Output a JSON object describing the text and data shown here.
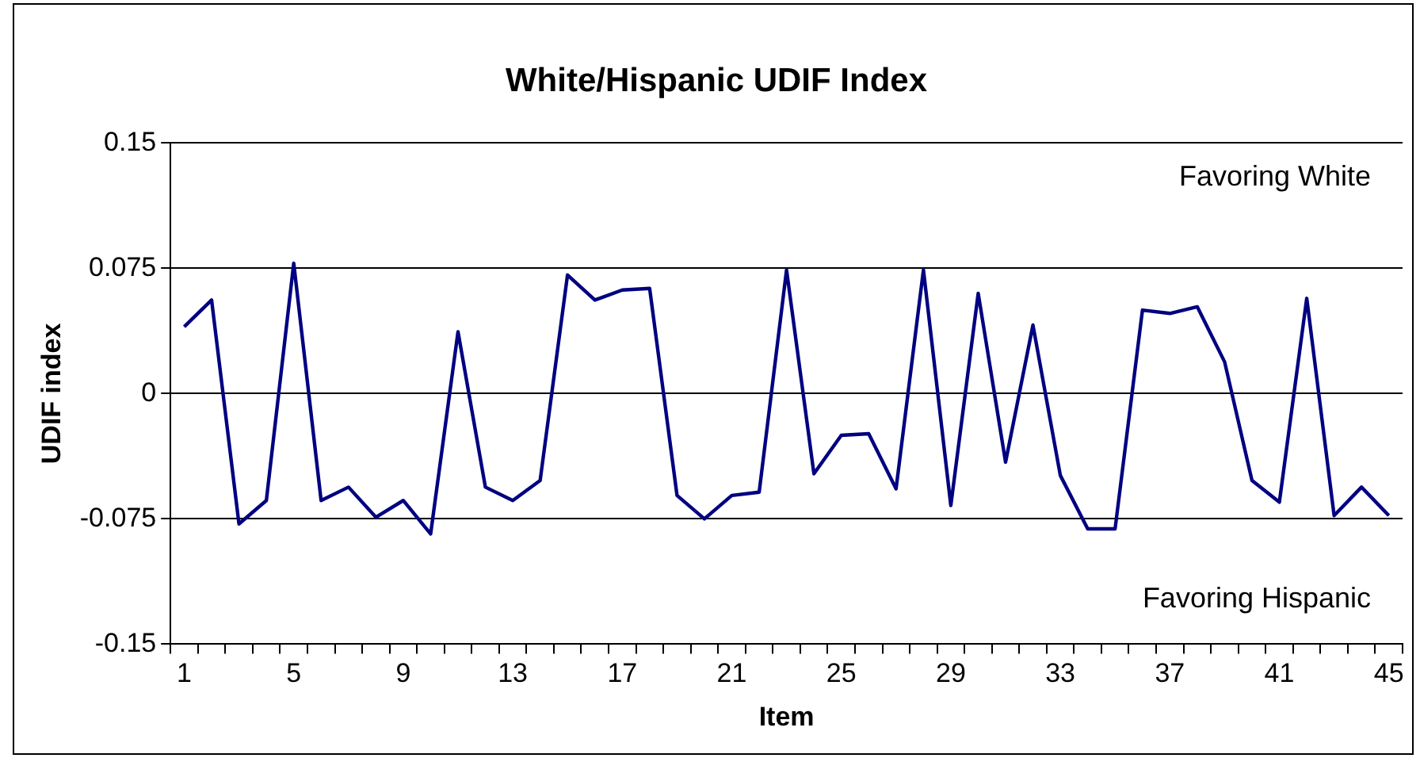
{
  "chart_data": {
    "type": "line",
    "title": "White/Hispanic UDIF Index",
    "xlabel": "Item",
    "ylabel": "UDIF index",
    "categories": [
      "1",
      null,
      null,
      null,
      "5",
      null,
      null,
      null,
      "9",
      null,
      null,
      null,
      "13",
      null,
      null,
      null,
      "17",
      null,
      null,
      null,
      "21",
      null,
      null,
      null,
      "25",
      null,
      null,
      null,
      "29",
      null,
      null,
      null,
      "33",
      null,
      null,
      null,
      "37",
      null,
      null,
      null,
      "41",
      null,
      null,
      null,
      "45"
    ],
    "series": [
      {
        "color": "#000080",
        "values": [
          0.04,
          0.056,
          -0.078,
          -0.064,
          0.078,
          -0.064,
          -0.056,
          -0.074,
          -0.064,
          -0.084,
          0.037,
          -0.056,
          -0.064,
          -0.052,
          0.071,
          0.056,
          0.062,
          0.063,
          -0.061,
          -0.075,
          -0.061,
          -0.059,
          0.074,
          -0.048,
          -0.025,
          -0.024,
          -0.057,
          0.074,
          -0.067,
          0.06,
          -0.041,
          0.041,
          -0.049,
          -0.081,
          -0.081,
          0.05,
          0.048,
          0.052,
          0.019,
          -0.052,
          -0.065,
          0.057,
          -0.073,
          -0.056,
          -0.073
        ]
      }
    ],
    "ylim": [
      -0.15,
      0.15
    ],
    "yticks": [
      -0.15,
      -0.075,
      0,
      0.075,
      0.15
    ],
    "grid": "y",
    "legend": false,
    "marker": "none",
    "line_style": "solid",
    "annotations": [
      "Favoring White",
      "Favoring Hispanic"
    ]
  }
}
